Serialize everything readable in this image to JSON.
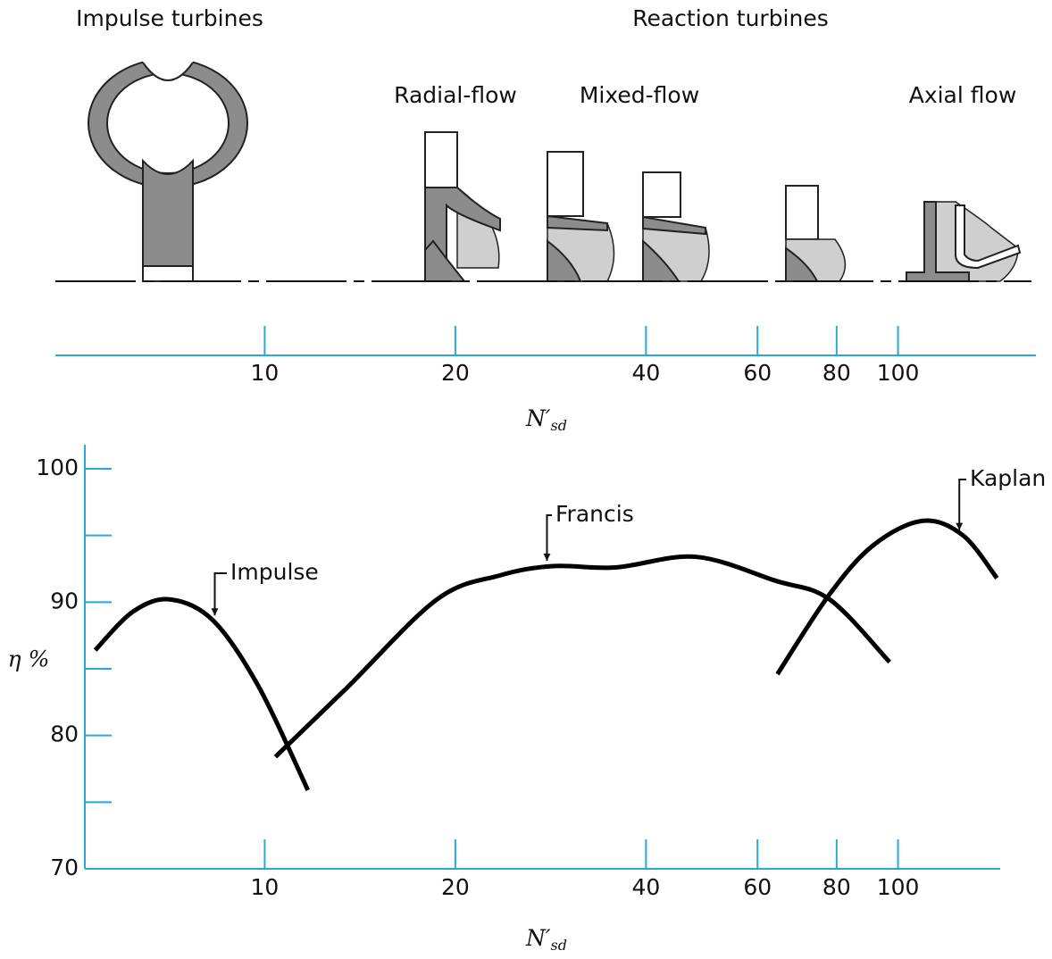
{
  "chart_data": {
    "type": "line",
    "headers": {
      "impulse": "Impulse turbines",
      "reaction": "Reaction turbines",
      "radial": "Radial-flow",
      "mixed": "Mixed-flow",
      "axial": "Axial flow"
    },
    "x_label": {
      "symbol": "N′",
      "subscript": "sd"
    },
    "y_label": "η %",
    "xscale": "log",
    "xlim": [
      5.2,
      145
    ],
    "xticks": [
      10,
      20,
      40,
      60,
      80,
      100
    ],
    "ylim": [
      70,
      100
    ],
    "yticks": [
      70,
      80,
      90,
      100
    ],
    "yminor_ticks": [
      75,
      85,
      95
    ],
    "axis_color": "#29a9d6",
    "series": [
      {
        "name": "Impulse",
        "color": "#000000",
        "x": [
          5.4,
          6.2,
          7.1,
          8.3,
          9.8,
          11.7
        ],
        "values": [
          86.4,
          89.3,
          90.2,
          88.6,
          83.6,
          75.9
        ]
      },
      {
        "name": "Francis",
        "color": "#000000",
        "x": [
          10.4,
          13.5,
          18.7,
          23.5,
          28.5,
          35.8,
          47.9,
          64.1,
          78.0,
          97.0
        ],
        "values": [
          78.4,
          83.6,
          90.2,
          92.0,
          92.7,
          92.6,
          93.4,
          91.6,
          90.2,
          85.5
        ]
      },
      {
        "name": "Kaplan",
        "color": "#000000",
        "x": [
          64.5,
          78.0,
          91.6,
          109.5,
          126.7,
          143.3
        ],
        "values": [
          84.6,
          90.6,
          94.3,
          96.1,
          95.0,
          91.8
        ]
      }
    ]
  }
}
